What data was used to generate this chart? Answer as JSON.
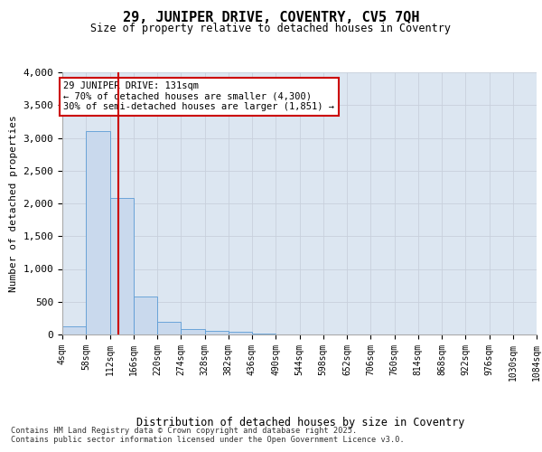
{
  "title": "29, JUNIPER DRIVE, COVENTRY, CV5 7QH",
  "subtitle": "Size of property relative to detached houses in Coventry",
  "xlabel": "Distribution of detached houses by size in Coventry",
  "ylabel": "Number of detached properties",
  "footer_line1": "Contains HM Land Registry data © Crown copyright and database right 2025.",
  "footer_line2": "Contains public sector information licensed under the Open Government Licence v3.0.",
  "annotation_line1": "29 JUNIPER DRIVE: 131sqm",
  "annotation_line2": "← 70% of detached houses are smaller (4,300)",
  "annotation_line3": "30% of semi-detached houses are larger (1,851) →",
  "property_size": 131,
  "bin_edges": [
    4,
    58,
    112,
    166,
    220,
    274,
    328,
    382,
    436,
    490,
    544,
    598,
    652,
    706,
    760,
    814,
    868,
    922,
    976,
    1030,
    1084
  ],
  "bar_heights": [
    130,
    3100,
    2080,
    580,
    200,
    80,
    55,
    40,
    10,
    5,
    3,
    2,
    1,
    1,
    1,
    0,
    0,
    0,
    0,
    0
  ],
  "bar_color": "#c9d9ed",
  "bar_edge_color": "#5b9bd5",
  "grid_color": "#c8d0dc",
  "background_color": "#dce6f1",
  "fig_bg_color": "#ffffff",
  "vline_color": "#cc0000",
  "annotation_box_color": "#cc0000",
  "ylim": [
    0,
    4000
  ],
  "yticks": [
    0,
    500,
    1000,
    1500,
    2000,
    2500,
    3000,
    3500,
    4000
  ]
}
